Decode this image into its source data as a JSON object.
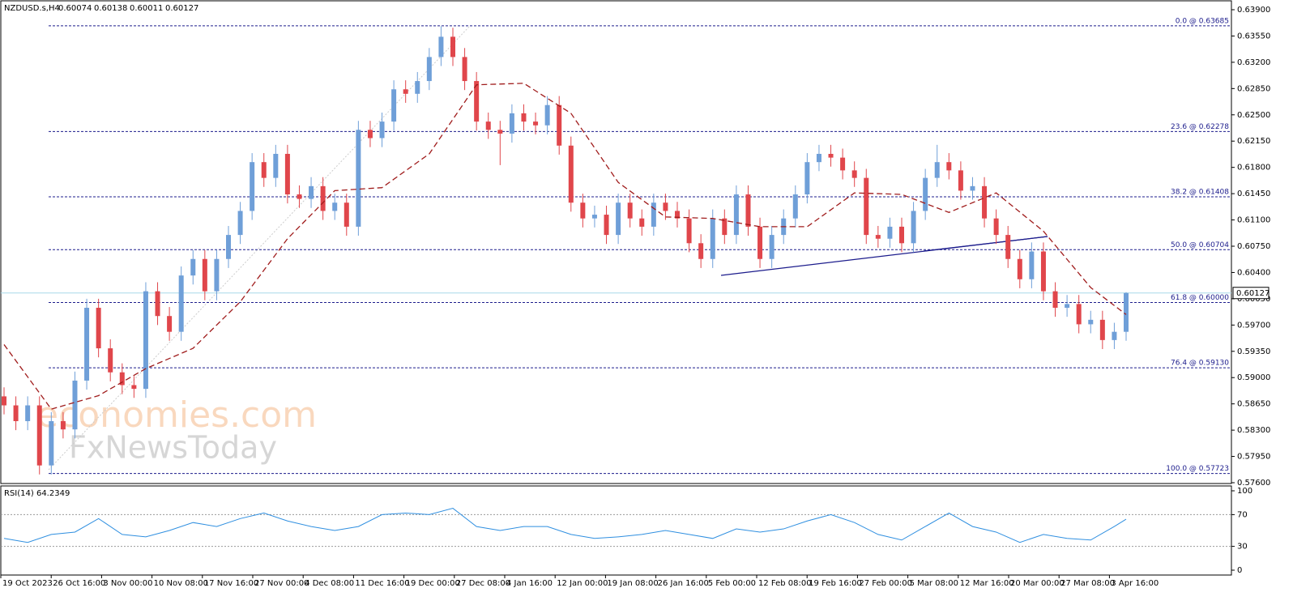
{
  "chart_data": [
    {
      "type": "candlestick",
      "title": "NZDUSD.s,H4",
      "quote": [
        0.60074,
        0.60138,
        0.60011,
        0.60127
      ],
      "bull_color": "#6f9fd8",
      "bear_color": "#e0464b",
      "open": [
        0.5875,
        0.5863,
        0.5842,
        0.5863,
        0.5783,
        0.5842,
        0.5831,
        0.5896,
        0.5993,
        0.5939,
        0.5907,
        0.589,
        0.5885,
        0.6015,
        0.5982,
        0.5961,
        0.6036,
        0.6058,
        0.6015,
        0.6058,
        0.609,
        0.6122,
        0.6187,
        0.6166,
        0.6198,
        0.6144,
        0.6138,
        0.6155,
        0.6122,
        0.6133,
        0.6101,
        0.623,
        0.6219,
        0.6241,
        0.6284,
        0.6278,
        0.6295,
        0.6327,
        0.6354,
        0.6327,
        0.6295,
        0.6241,
        0.623,
        0.6225,
        0.6252,
        0.6241,
        0.6236,
        0.6263,
        0.6209,
        0.6133,
        0.6112,
        0.6117,
        0.609,
        0.6133,
        0.6112,
        0.6101,
        0.6133,
        0.6122,
        0.6112,
        0.6079,
        0.6058,
        0.6112,
        0.609,
        0.6144,
        0.6101,
        0.6058,
        0.609,
        0.6112,
        0.6144,
        0.6187,
        0.6198,
        0.6193,
        0.6176,
        0.6166,
        0.609,
        0.6085,
        0.6101,
        0.6079,
        0.6122,
        0.6166,
        0.6187,
        0.6176,
        0.6149,
        0.6155,
        0.6112,
        0.609,
        0.6058,
        0.6031,
        0.6068,
        0.6015,
        0.5993,
        0.5998,
        0.5971,
        0.5977,
        0.595,
        0.5961
      ],
      "high": [
        0.5887,
        0.5875,
        0.5875,
        0.5875,
        0.5854,
        0.5854,
        0.5908,
        0.6005,
        0.6005,
        0.5951,
        0.5919,
        0.5902,
        0.6027,
        0.6027,
        0.5994,
        0.6048,
        0.607,
        0.607,
        0.607,
        0.6102,
        0.6134,
        0.6199,
        0.6199,
        0.621,
        0.621,
        0.6156,
        0.6167,
        0.6167,
        0.6145,
        0.6145,
        0.6242,
        0.6242,
        0.6253,
        0.6296,
        0.6296,
        0.6307,
        0.6339,
        0.6368,
        0.6366,
        0.6339,
        0.6307,
        0.6253,
        0.6242,
        0.6264,
        0.6264,
        0.6253,
        0.6275,
        0.6275,
        0.6221,
        0.6145,
        0.6129,
        0.6129,
        0.6145,
        0.6145,
        0.6124,
        0.6145,
        0.6145,
        0.6134,
        0.6124,
        0.6091,
        0.6124,
        0.6124,
        0.6156,
        0.6156,
        0.6113,
        0.6102,
        0.6124,
        0.6156,
        0.6199,
        0.621,
        0.621,
        0.6205,
        0.6188,
        0.6178,
        0.6102,
        0.6113,
        0.6113,
        0.6134,
        0.6178,
        0.621,
        0.6199,
        0.6188,
        0.6167,
        0.6167,
        0.6124,
        0.6102,
        0.607,
        0.608,
        0.608,
        0.6027,
        0.601,
        0.601,
        0.5989,
        0.5989,
        0.5973,
        0.60138
      ],
      "low": [
        0.5851,
        0.583,
        0.583,
        0.5771,
        0.5771,
        0.5819,
        0.5819,
        0.5884,
        0.5927,
        0.5895,
        0.5878,
        0.5873,
        0.5873,
        0.597,
        0.5949,
        0.5949,
        0.6024,
        0.6003,
        0.6003,
        0.6046,
        0.6078,
        0.611,
        0.6154,
        0.6154,
        0.6132,
        0.6126,
        0.6126,
        0.611,
        0.611,
        0.6089,
        0.6089,
        0.6207,
        0.6207,
        0.6229,
        0.6266,
        0.6266,
        0.6283,
        0.6315,
        0.6315,
        0.6283,
        0.6229,
        0.6218,
        0.6183,
        0.6213,
        0.6229,
        0.6224,
        0.6224,
        0.6197,
        0.6121,
        0.61,
        0.61,
        0.6078,
        0.6078,
        0.61,
        0.6089,
        0.6089,
        0.611,
        0.61,
        0.6067,
        0.6046,
        0.6046,
        0.6078,
        0.6078,
        0.6089,
        0.6046,
        0.6046,
        0.6078,
        0.61,
        0.6132,
        0.6175,
        0.6181,
        0.6164,
        0.6154,
        0.6078,
        0.6073,
        0.6073,
        0.6067,
        0.6067,
        0.611,
        0.6154,
        0.6164,
        0.6137,
        0.6137,
        0.61,
        0.6078,
        0.6046,
        0.6019,
        0.6019,
        0.6003,
        0.5981,
        0.5981,
        0.5959,
        0.5959,
        0.5938,
        0.5938,
        0.5949
      ],
      "close": [
        0.5863,
        0.5842,
        0.5863,
        0.5783,
        0.5842,
        0.5831,
        0.5896,
        0.5993,
        0.5939,
        0.5907,
        0.589,
        0.5885,
        0.6015,
        0.5982,
        0.5961,
        0.6036,
        0.6058,
        0.6015,
        0.6058,
        0.609,
        0.6122,
        0.6187,
        0.6166,
        0.6198,
        0.6144,
        0.6138,
        0.6155,
        0.6122,
        0.6133,
        0.6101,
        0.623,
        0.6219,
        0.6241,
        0.6284,
        0.6278,
        0.6295,
        0.6327,
        0.6354,
        0.6327,
        0.6295,
        0.6241,
        0.623,
        0.6225,
        0.6252,
        0.6241,
        0.6236,
        0.6263,
        0.6209,
        0.6133,
        0.6112,
        0.6117,
        0.609,
        0.6133,
        0.6112,
        0.6101,
        0.6133,
        0.6122,
        0.6112,
        0.6079,
        0.6058,
        0.6112,
        0.609,
        0.6144,
        0.6101,
        0.6058,
        0.609,
        0.6112,
        0.6144,
        0.6187,
        0.6198,
        0.6193,
        0.6176,
        0.6166,
        0.609,
        0.6085,
        0.6101,
        0.6079,
        0.6122,
        0.6166,
        0.6187,
        0.6176,
        0.6149,
        0.6155,
        0.6112,
        0.609,
        0.6058,
        0.6031,
        0.6068,
        0.6015,
        0.5993,
        0.5998,
        0.5971,
        0.5977,
        0.595,
        0.5961,
        0.60127
      ],
      "ma": {
        "color": "#a01c1c",
        "x": [
          0,
          4,
          8,
          12,
          16,
          20,
          24,
          28,
          32,
          36,
          40,
          44,
          48,
          52,
          56,
          60,
          64,
          68,
          72,
          76,
          80,
          84,
          88,
          92,
          95
        ],
        "values": [
          0.5944,
          0.5858,
          0.5876,
          0.5912,
          0.5939,
          0.6001,
          0.6085,
          0.6149,
          0.6153,
          0.6198,
          0.629,
          0.6292,
          0.6252,
          0.616,
          0.6114,
          0.6112,
          0.6101,
          0.6101,
          0.6146,
          0.6144,
          0.612,
          0.6146,
          0.6095,
          0.602,
          0.5984
        ]
      },
      "fib_levels": [
        {
          "value": 0.63685,
          "label": "0.0 @ 0.63685"
        },
        {
          "value": 0.62278,
          "label": "23.6 @ 0.62278"
        },
        {
          "value": 0.61408,
          "label": "38.2 @ 0.61408"
        },
        {
          "value": 0.60704,
          "label": "50.0 @ 0.60704"
        },
        {
          "value": 0.6,
          "label": "61.8 @ 0.60000"
        },
        {
          "value": 0.5913,
          "label": "76.4 @ 0.59130"
        },
        {
          "value": 0.57723,
          "label": "100.0 @ 0.57723"
        }
      ],
      "fib_color": "#1c1c8c",
      "last_price": 0.60127,
      "ylim": [
        0.576,
        0.639
      ],
      "yticks": [
        {
          "value": 0.639,
          "label": "0.63900"
        },
        {
          "value": 0.6355,
          "label": "0.63550"
        },
        {
          "value": 0.632,
          "label": "0.63200"
        },
        {
          "value": 0.6285,
          "label": "0.62850"
        },
        {
          "value": 0.625,
          "label": "0.62500"
        },
        {
          "value": 0.6215,
          "label": "0.62150"
        },
        {
          "value": 0.618,
          "label": "0.61800"
        },
        {
          "value": 0.6145,
          "label": "0.61450"
        },
        {
          "value": 0.611,
          "label": "0.61100"
        },
        {
          "value": 0.6075,
          "label": "0.60750"
        },
        {
          "value": 0.604,
          "label": "0.60400"
        },
        {
          "value": 0.6005,
          "label": "0.60050"
        },
        {
          "value": 0.597,
          "label": "0.59700"
        },
        {
          "value": 0.5935,
          "label": "0.59350"
        },
        {
          "value": 0.59,
          "label": "0.59000"
        },
        {
          "value": 0.5865,
          "label": "0.58650"
        },
        {
          "value": 0.583,
          "label": "0.58300"
        },
        {
          "value": 0.5795,
          "label": "0.57950"
        },
        {
          "value": 0.576,
          "label": "0.57600"
        }
      ],
      "x_labels": [
        "19 Oct 2023",
        "26 Oct 16:00",
        "3 Nov 00:00",
        "10 Nov 08:00",
        "17 Nov 16:00",
        "27 Nov 00:00",
        "4 Dec 08:00",
        "11 Dec 16:00",
        "19 Dec 00:00",
        "27 Dec 08:00",
        "4 Jan 16:00",
        "12 Jan 00:00",
        "19 Jan 08:00",
        "26 Jan 16:00",
        "5 Feb 00:00",
        "12 Feb 08:00",
        "19 Feb 16:00",
        "27 Feb 00:00",
        "5 Mar 08:00",
        "12 Mar 16:00",
        "20 Mar 00:00",
        "27 Mar 08:00",
        "3 Apr 16:00"
      ],
      "watermark": [
        "economies.com",
        "FxNewsToday"
      ]
    },
    {
      "type": "line",
      "title": "RSI(14) 64.2349",
      "color": "#2f8fe0",
      "x": [
        0,
        2,
        4,
        6,
        8,
        10,
        12,
        14,
        16,
        18,
        20,
        22,
        24,
        26,
        28,
        30,
        32,
        34,
        36,
        38,
        40,
        42,
        44,
        46,
        48,
        50,
        52,
        54,
        56,
        58,
        60,
        62,
        64,
        66,
        68,
        70,
        72,
        74,
        76,
        78,
        80,
        82,
        84,
        86,
        88,
        90,
        92,
        94,
        95
      ],
      "values": [
        40,
        35,
        45,
        48,
        65,
        45,
        42,
        50,
        60,
        55,
        65,
        72,
        62,
        55,
        50,
        55,
        70,
        72,
        70,
        78,
        55,
        50,
        55,
        55,
        45,
        40,
        42,
        45,
        50,
        45,
        40,
        52,
        48,
        52,
        62,
        70,
        60,
        45,
        38,
        55,
        72,
        55,
        48,
        35,
        45,
        40,
        38,
        55,
        64.2349
      ],
      "ylim": [
        0,
        100
      ],
      "yticks": [
        100,
        70,
        30,
        0
      ],
      "levels": [
        70,
        30
      ]
    }
  ]
}
